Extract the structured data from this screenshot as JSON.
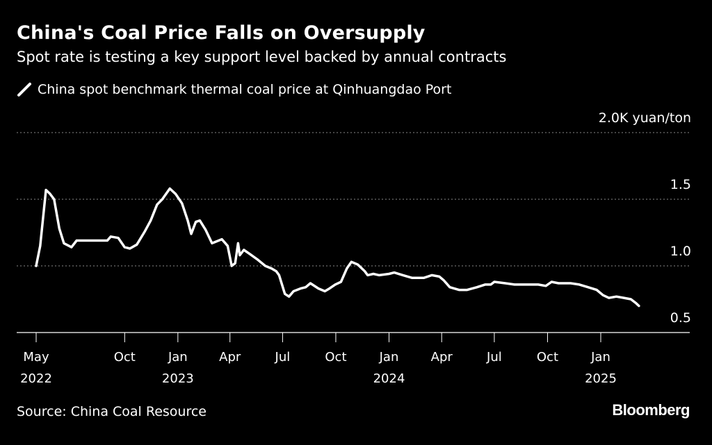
{
  "chart_data": {
    "type": "line",
    "title": "China's Coal Price Falls on Oversupply",
    "subtitle": "Spot rate is testing a key support level backed by annual contracts",
    "ylabel_unit": "yuan/ton",
    "y_ticks": [
      {
        "value": 2.0,
        "label": "2.0K yuan/ton"
      },
      {
        "value": 1.5,
        "label": "1.5"
      },
      {
        "value": 1.0,
        "label": "1.0"
      },
      {
        "value": 0.5,
        "label": "0.5"
      }
    ],
    "ylim": [
      0.5,
      2.0
    ],
    "x_ticks": [
      {
        "date": "2022-05-01",
        "month": "May",
        "year": "2022"
      },
      {
        "date": "2022-10-01",
        "month": "Oct",
        "year": ""
      },
      {
        "date": "2023-01-01",
        "month": "Jan",
        "year": "2023"
      },
      {
        "date": "2023-04-01",
        "month": "Apr",
        "year": ""
      },
      {
        "date": "2023-07-01",
        "month": "Jul",
        "year": ""
      },
      {
        "date": "2023-10-01",
        "month": "Oct",
        "year": ""
      },
      {
        "date": "2024-01-01",
        "month": "Jan",
        "year": "2024"
      },
      {
        "date": "2024-04-01",
        "month": "Apr",
        "year": ""
      },
      {
        "date": "2024-07-01",
        "month": "Jul",
        "year": ""
      },
      {
        "date": "2024-10-01",
        "month": "Oct",
        "year": ""
      },
      {
        "date": "2025-01-01",
        "month": "Jan",
        "year": "2025"
      }
    ],
    "xlim": [
      "2022-05-01",
      "2025-03-10"
    ],
    "grid": true,
    "legend_position": "top-left",
    "series": [
      {
        "name": "China spot benchmark thermal coal price at Qinhuangdao Port",
        "color": "#ffffff",
        "points": [
          [
            "2022-05-01",
            1.0
          ],
          [
            "2022-05-08",
            1.15
          ],
          [
            "2022-05-18",
            1.57
          ],
          [
            "2022-05-25",
            1.54
          ],
          [
            "2022-06-01",
            1.5
          ],
          [
            "2022-06-10",
            1.28
          ],
          [
            "2022-06-18",
            1.17
          ],
          [
            "2022-07-01",
            1.14
          ],
          [
            "2022-07-10",
            1.19
          ],
          [
            "2022-08-01",
            1.19
          ],
          [
            "2022-09-01",
            1.19
          ],
          [
            "2022-09-07",
            1.22
          ],
          [
            "2022-09-20",
            1.21
          ],
          [
            "2022-10-01",
            1.14
          ],
          [
            "2022-10-10",
            1.13
          ],
          [
            "2022-10-22",
            1.16
          ],
          [
            "2022-11-05",
            1.26
          ],
          [
            "2022-11-15",
            1.34
          ],
          [
            "2022-11-26",
            1.46
          ],
          [
            "2022-12-05",
            1.5
          ],
          [
            "2022-12-18",
            1.58
          ],
          [
            "2022-12-28",
            1.54
          ],
          [
            "2023-01-08",
            1.47
          ],
          [
            "2023-01-18",
            1.34
          ],
          [
            "2023-01-24",
            1.24
          ],
          [
            "2023-02-01",
            1.33
          ],
          [
            "2023-02-08",
            1.34
          ],
          [
            "2023-02-18",
            1.27
          ],
          [
            "2023-03-01",
            1.17
          ],
          [
            "2023-03-18",
            1.2
          ],
          [
            "2023-03-28",
            1.15
          ],
          [
            "2023-04-04",
            1.0
          ],
          [
            "2023-04-10",
            1.02
          ],
          [
            "2023-04-15",
            1.17
          ],
          [
            "2023-04-18",
            1.08
          ],
          [
            "2023-04-25",
            1.12
          ],
          [
            "2023-05-05",
            1.09
          ],
          [
            "2023-05-18",
            1.05
          ],
          [
            "2023-06-01",
            1.0
          ],
          [
            "2023-06-12",
            0.98
          ],
          [
            "2023-06-20",
            0.96
          ],
          [
            "2023-06-25",
            0.93
          ],
          [
            "2023-07-05",
            0.79
          ],
          [
            "2023-07-12",
            0.77
          ],
          [
            "2023-07-20",
            0.81
          ],
          [
            "2023-08-01",
            0.83
          ],
          [
            "2023-08-10",
            0.84
          ],
          [
            "2023-08-18",
            0.87
          ],
          [
            "2023-09-01",
            0.83
          ],
          [
            "2023-09-12",
            0.81
          ],
          [
            "2023-09-20",
            0.83
          ],
          [
            "2023-09-30",
            0.86
          ],
          [
            "2023-10-10",
            0.88
          ],
          [
            "2023-10-20",
            0.98
          ],
          [
            "2023-10-28",
            1.03
          ],
          [
            "2023-11-08",
            1.01
          ],
          [
            "2023-11-20",
            0.96
          ],
          [
            "2023-11-25",
            0.93
          ],
          [
            "2023-12-05",
            0.94
          ],
          [
            "2023-12-15",
            0.93
          ],
          [
            "2024-01-01",
            0.94
          ],
          [
            "2024-01-10",
            0.95
          ],
          [
            "2024-01-25",
            0.93
          ],
          [
            "2024-02-10",
            0.91
          ],
          [
            "2024-03-01",
            0.91
          ],
          [
            "2024-03-15",
            0.93
          ],
          [
            "2024-03-28",
            0.92
          ],
          [
            "2024-04-05",
            0.89
          ],
          [
            "2024-04-15",
            0.84
          ],
          [
            "2024-05-01",
            0.82
          ],
          [
            "2024-05-15",
            0.82
          ],
          [
            "2024-06-01",
            0.84
          ],
          [
            "2024-06-15",
            0.86
          ],
          [
            "2024-06-25",
            0.86
          ],
          [
            "2024-07-01",
            0.88
          ],
          [
            "2024-07-20",
            0.87
          ],
          [
            "2024-08-05",
            0.86
          ],
          [
            "2024-08-25",
            0.86
          ],
          [
            "2024-09-15",
            0.86
          ],
          [
            "2024-09-28",
            0.85
          ],
          [
            "2024-10-08",
            0.88
          ],
          [
            "2024-10-20",
            0.87
          ],
          [
            "2024-11-10",
            0.87
          ],
          [
            "2024-11-25",
            0.86
          ],
          [
            "2024-12-10",
            0.84
          ],
          [
            "2024-12-25",
            0.82
          ],
          [
            "2025-01-05",
            0.78
          ],
          [
            "2025-01-15",
            0.76
          ],
          [
            "2025-01-28",
            0.77
          ],
          [
            "2025-02-10",
            0.76
          ],
          [
            "2025-02-22",
            0.75
          ],
          [
            "2025-03-03",
            0.72
          ],
          [
            "2025-03-08",
            0.7
          ]
        ]
      }
    ],
    "source": "Source: China Coal Resource",
    "brand": "Bloomberg"
  }
}
